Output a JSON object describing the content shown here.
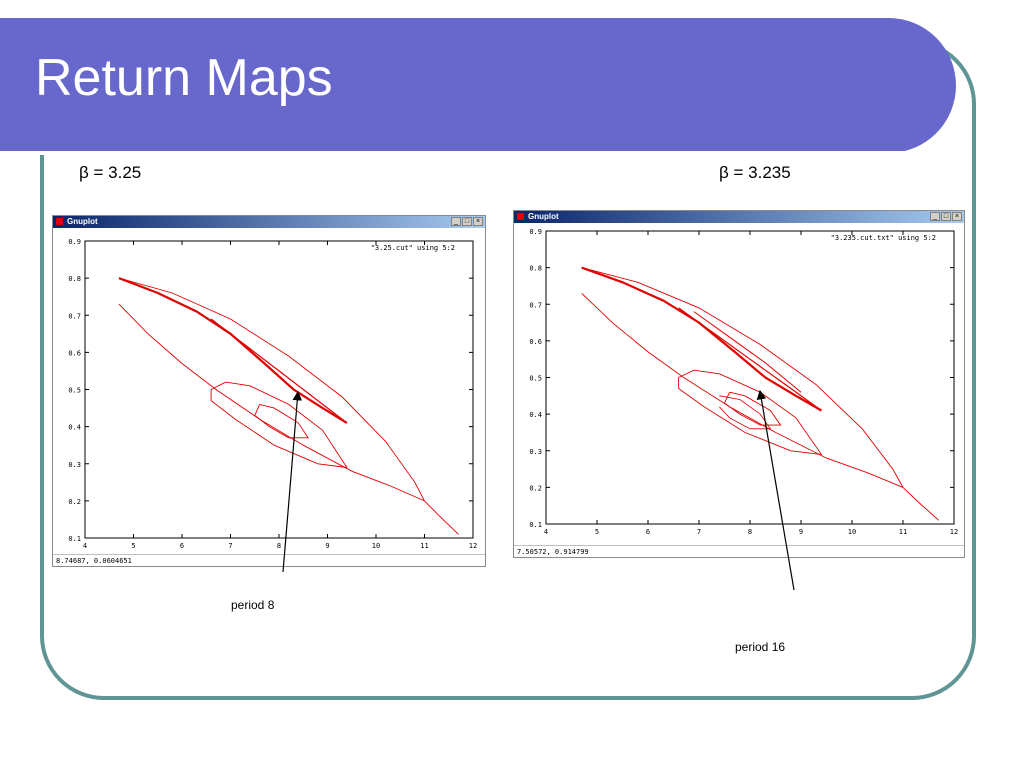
{
  "slide": {
    "title": "Return Maps"
  },
  "colors": {
    "accent": "#6767cc",
    "frame": "#5f9595",
    "curve": "#e00000"
  },
  "left": {
    "beta": "β = 3.25",
    "window_title": "Gnuplot",
    "legend": "\"3.25.cut\" using 5:2",
    "status": "8.74687,  0.0604651",
    "note": "period 8"
  },
  "right": {
    "beta": "β = 3.235",
    "window_title": "Gnuplot",
    "legend": "\"3.235.cut.txt\" using 5:2",
    "status": "7.50572,  0.914799",
    "note": "period 16"
  },
  "window_buttons": [
    "_",
    "□",
    "×"
  ],
  "chart_data": [
    {
      "type": "scatter",
      "legend": "\"3.25.cut\" using 5:2",
      "xlim": [
        4,
        12
      ],
      "ylim": [
        0.1,
        0.9
      ],
      "xticks": [
        "4",
        "5",
        "6",
        "7",
        "8",
        "9",
        "10",
        "11",
        "12"
      ],
      "yticks": [
        "0.1",
        "0.2",
        "0.3",
        "0.4",
        "0.5",
        "0.6",
        "0.7",
        "0.8",
        "0.9"
      ]
    },
    {
      "type": "scatter",
      "legend": "\"3.235.cut.txt\" using 5:2",
      "xlim": [
        4,
        12
      ],
      "ylim": [
        0.1,
        0.9
      ],
      "xticks": [
        "4",
        "5",
        "6",
        "7",
        "8",
        "9",
        "10",
        "11",
        "12"
      ],
      "yticks": [
        "0.1",
        "0.2",
        "0.3",
        "0.4",
        "0.5",
        "0.6",
        "0.7",
        "0.8",
        "0.9"
      ]
    }
  ]
}
